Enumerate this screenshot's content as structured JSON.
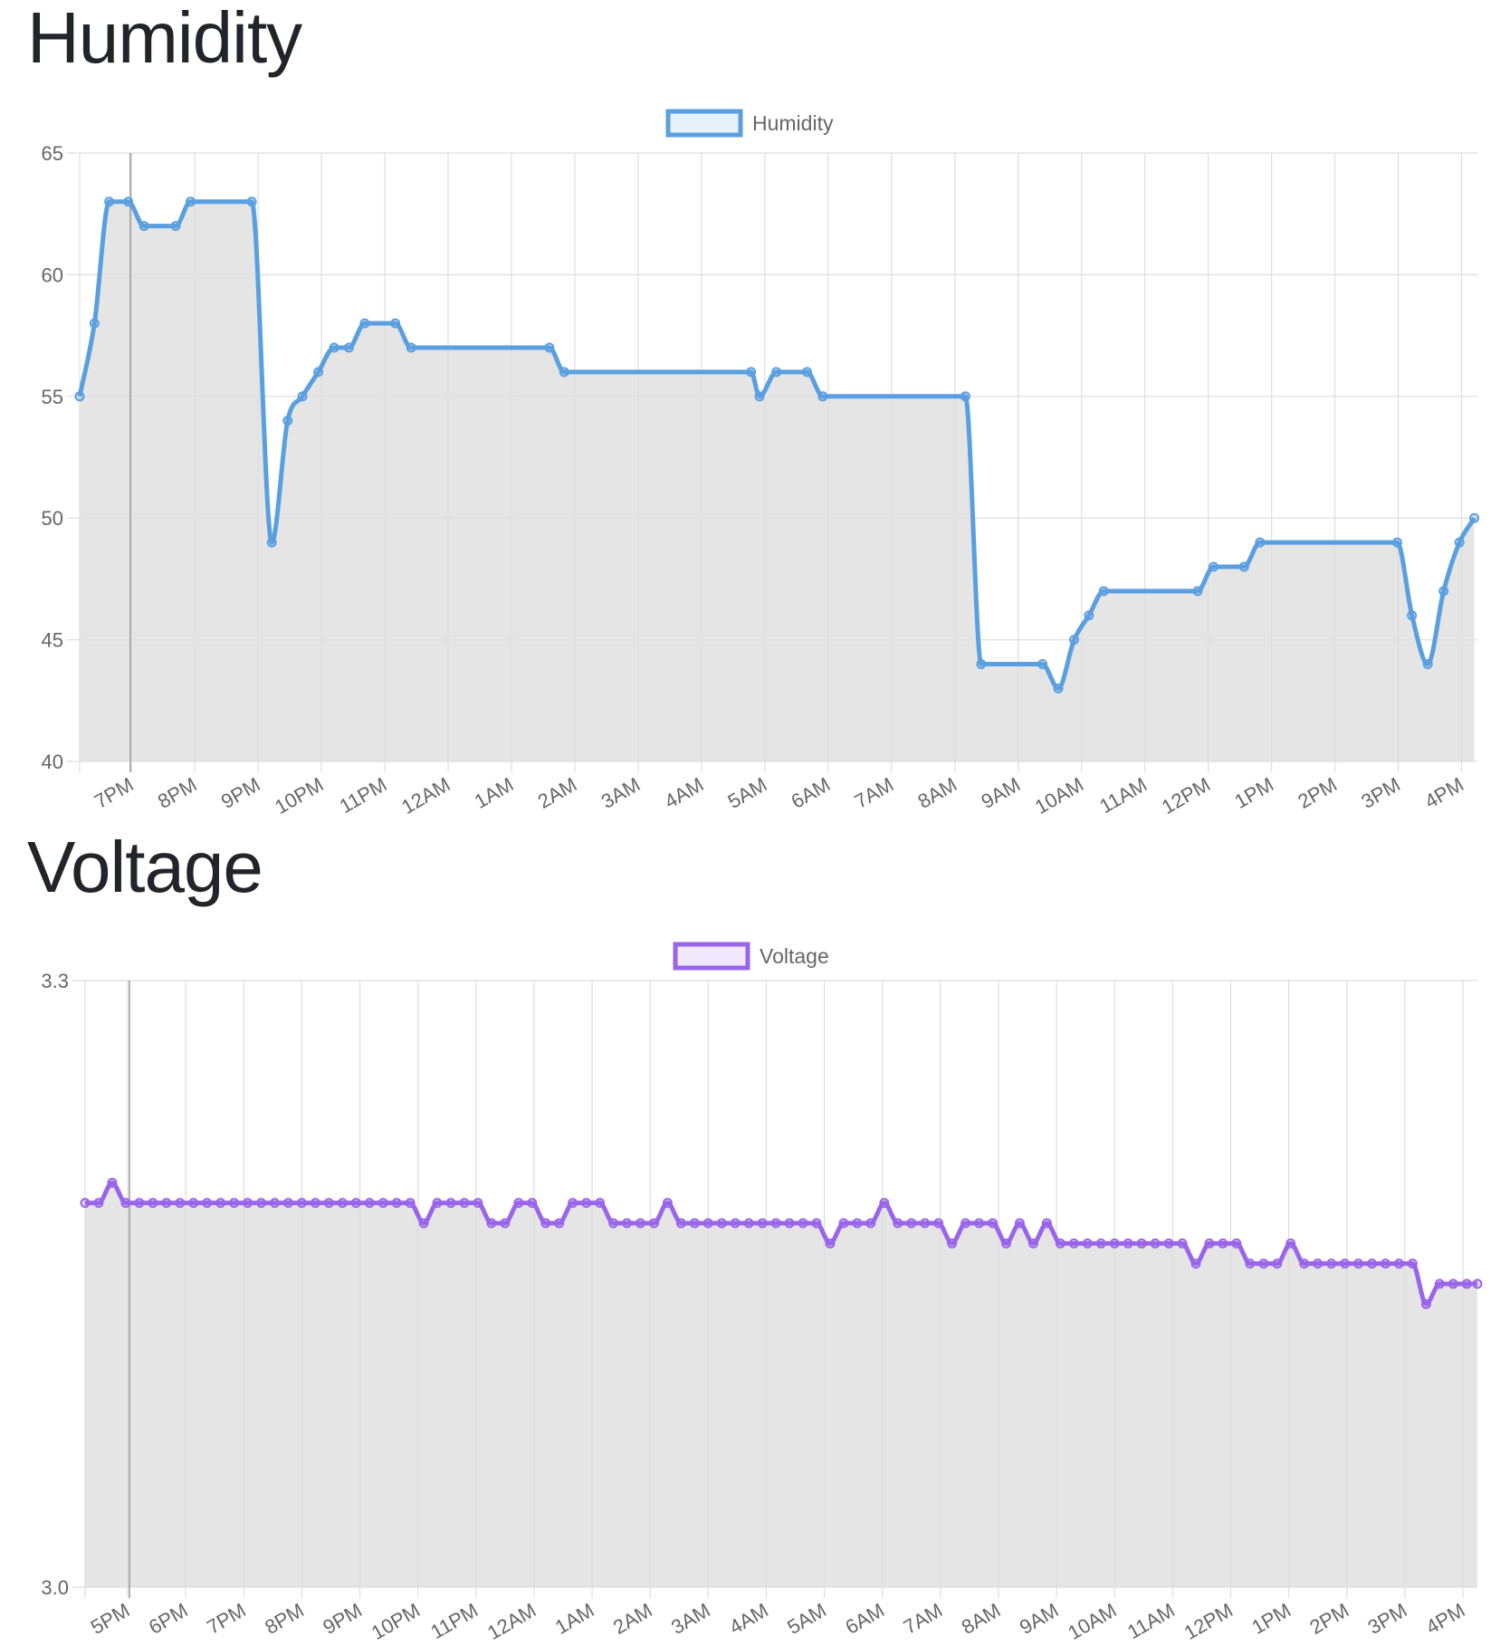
{
  "charts": {
    "humidity": {
      "title": "Humidity",
      "chart_data": {
        "type": "line",
        "title": "",
        "xlabel": "",
        "ylabel": "",
        "legend": {
          "position": "top-center",
          "label": "Humidity"
        },
        "grid": true,
        "fill": "#e5e5e5",
        "color": "#5a9fe0",
        "ylim": [
          40,
          65
        ],
        "y_ticks": [
          "40",
          "45",
          "50",
          "55",
          "60",
          "65"
        ],
        "x_ticks": [
          "7PM",
          "8PM",
          "9PM",
          "10PM",
          "11PM",
          "12AM",
          "1AM",
          "2AM",
          "3AM",
          "4AM",
          "5AM",
          "6AM",
          "7AM",
          "8AM",
          "9AM",
          "10AM",
          "11AM",
          "12PM",
          "1PM",
          "2PM",
          "3PM",
          "4PM"
        ],
        "x_time_range": [
          "18:11",
          "16:15"
        ],
        "series": [
          {
            "name": "Humidity",
            "points": [
              [
                "18:11",
                55
              ],
              [
                "18:25",
                58
              ],
              [
                "18:39",
                63
              ],
              [
                "18:57",
                63
              ],
              [
                "19:12",
                62
              ],
              [
                "19:42",
                62
              ],
              [
                "19:56",
                63
              ],
              [
                "20:54",
                63
              ],
              [
                "21:13",
                49
              ],
              [
                "21:28",
                54
              ],
              [
                "21:42",
                55
              ],
              [
                "21:57",
                56
              ],
              [
                "22:12",
                57
              ],
              [
                "22:26",
                57
              ],
              [
                "22:41",
                58
              ],
              [
                "23:10",
                58
              ],
              [
                "23:25",
                57
              ],
              [
                "01:36",
                57
              ],
              [
                "01:50",
                56
              ],
              [
                "04:47",
                56
              ],
              [
                "04:55",
                55
              ],
              [
                "05:11",
                56
              ],
              [
                "05:40",
                56
              ],
              [
                "05:55",
                55
              ],
              [
                "08:10",
                55
              ],
              [
                "08:25",
                44
              ],
              [
                "09:23",
                44
              ],
              [
                "09:38",
                43
              ],
              [
                "09:53",
                45
              ],
              [
                "10:07",
                46
              ],
              [
                "10:21",
                47
              ],
              [
                "11:50",
                47
              ],
              [
                "12:05",
                48
              ],
              [
                "12:34",
                48
              ],
              [
                "12:49",
                49
              ],
              [
                "14:59",
                49
              ],
              [
                "15:13",
                46
              ],
              [
                "15:28",
                44
              ],
              [
                "15:43",
                47
              ],
              [
                "15:58",
                49
              ],
              [
                "16:12",
                50
              ]
            ]
          }
        ]
      }
    },
    "voltage": {
      "title": "Voltage",
      "chart_data": {
        "type": "line",
        "title": "",
        "xlabel": "",
        "ylabel": "",
        "legend": {
          "position": "top-center",
          "label": "Voltage"
        },
        "grid": true,
        "fill": "#e5e5e5",
        "color": "#9a65ea",
        "ylim": [
          3.0,
          3.3
        ],
        "y_ticks": [
          "3.0",
          "3.3"
        ],
        "x_ticks": [
          "5PM",
          "6PM",
          "7PM",
          "8PM",
          "9PM",
          "10PM",
          "11PM",
          "12AM",
          "1AM",
          "2AM",
          "3AM",
          "4AM",
          "5AM",
          "6AM",
          "7AM",
          "8AM",
          "9AM",
          "10AM",
          "11AM",
          "12PM",
          "1PM",
          "2PM",
          "3PM",
          "4PM"
        ],
        "x_time_range": [
          "16:16",
          "16:15"
        ],
        "series": [
          {
            "name": "Voltage",
            "values": [
              3.19,
              3.19,
              3.2,
              3.19,
              3.19,
              3.19,
              3.19,
              3.19,
              3.19,
              3.19,
              3.19,
              3.19,
              3.19,
              3.19,
              3.19,
              3.19,
              3.19,
              3.19,
              3.19,
              3.19,
              3.19,
              3.19,
              3.19,
              3.19,
              3.19,
              3.18,
              3.19,
              3.19,
              3.19,
              3.19,
              3.18,
              3.18,
              3.19,
              3.19,
              3.18,
              3.18,
              3.19,
              3.19,
              3.19,
              3.18,
              3.18,
              3.18,
              3.18,
              3.19,
              3.18,
              3.18,
              3.18,
              3.18,
              3.18,
              3.18,
              3.18,
              3.18,
              3.18,
              3.18,
              3.18,
              3.17,
              3.18,
              3.18,
              3.18,
              3.19,
              3.18,
              3.18,
              3.18,
              3.18,
              3.17,
              3.18,
              3.18,
              3.18,
              3.17,
              3.18,
              3.17,
              3.18,
              3.17,
              3.17,
              3.17,
              3.17,
              3.17,
              3.17,
              3.17,
              3.17,
              3.17,
              3.17,
              3.16,
              3.17,
              3.17,
              3.17,
              3.16,
              3.16,
              3.16,
              3.17,
              3.16,
              3.16,
              3.16,
              3.16,
              3.16,
              3.16,
              3.16,
              3.16,
              3.16,
              3.14,
              3.15,
              3.15,
              3.15,
              3.15
            ],
            "times": [
              "16:16",
              "16:30",
              "16:44",
              "16:58",
              "17:12",
              "17:26",
              "17:40",
              "17:54",
              "18:08",
              "18:22",
              "18:36",
              "18:50",
              "19:04",
              "19:18",
              "19:32",
              "19:46",
              "20:00",
              "20:14",
              "20:28",
              "20:42",
              "20:56",
              "21:10",
              "21:24",
              "21:38",
              "21:52",
              "22:06",
              "22:20",
              "22:34",
              "22:48",
              "23:02",
              "23:16",
              "23:30",
              "23:44",
              "23:58",
              "00:12",
              "00:26",
              "00:40",
              "00:54",
              "01:08",
              "01:22",
              "01:36",
              "01:50",
              "02:04",
              "02:18",
              "02:32",
              "02:46",
              "03:00",
              "03:14",
              "03:28",
              "03:42",
              "03:56",
              "04:10",
              "04:24",
              "04:38",
              "04:52",
              "05:06",
              "05:20",
              "05:34",
              "05:48",
              "06:02",
              "06:16",
              "06:30",
              "06:44",
              "06:58",
              "07:12",
              "07:26",
              "07:40",
              "07:54",
              "08:08",
              "08:22",
              "08:36",
              "08:50",
              "09:04",
              "09:18",
              "09:32",
              "09:46",
              "10:00",
              "10:14",
              "10:28",
              "10:42",
              "10:56",
              "11:10",
              "11:24",
              "11:38",
              "11:52",
              "12:06",
              "12:20",
              "12:34",
              "12:48",
              "13:02",
              "13:16",
              "13:30",
              "13:44",
              "13:58",
              "14:12",
              "14:26",
              "14:40",
              "14:54",
              "15:08",
              "15:22",
              "15:36",
              "15:50",
              "16:04",
              "16:15"
            ]
          }
        ]
      }
    }
  }
}
